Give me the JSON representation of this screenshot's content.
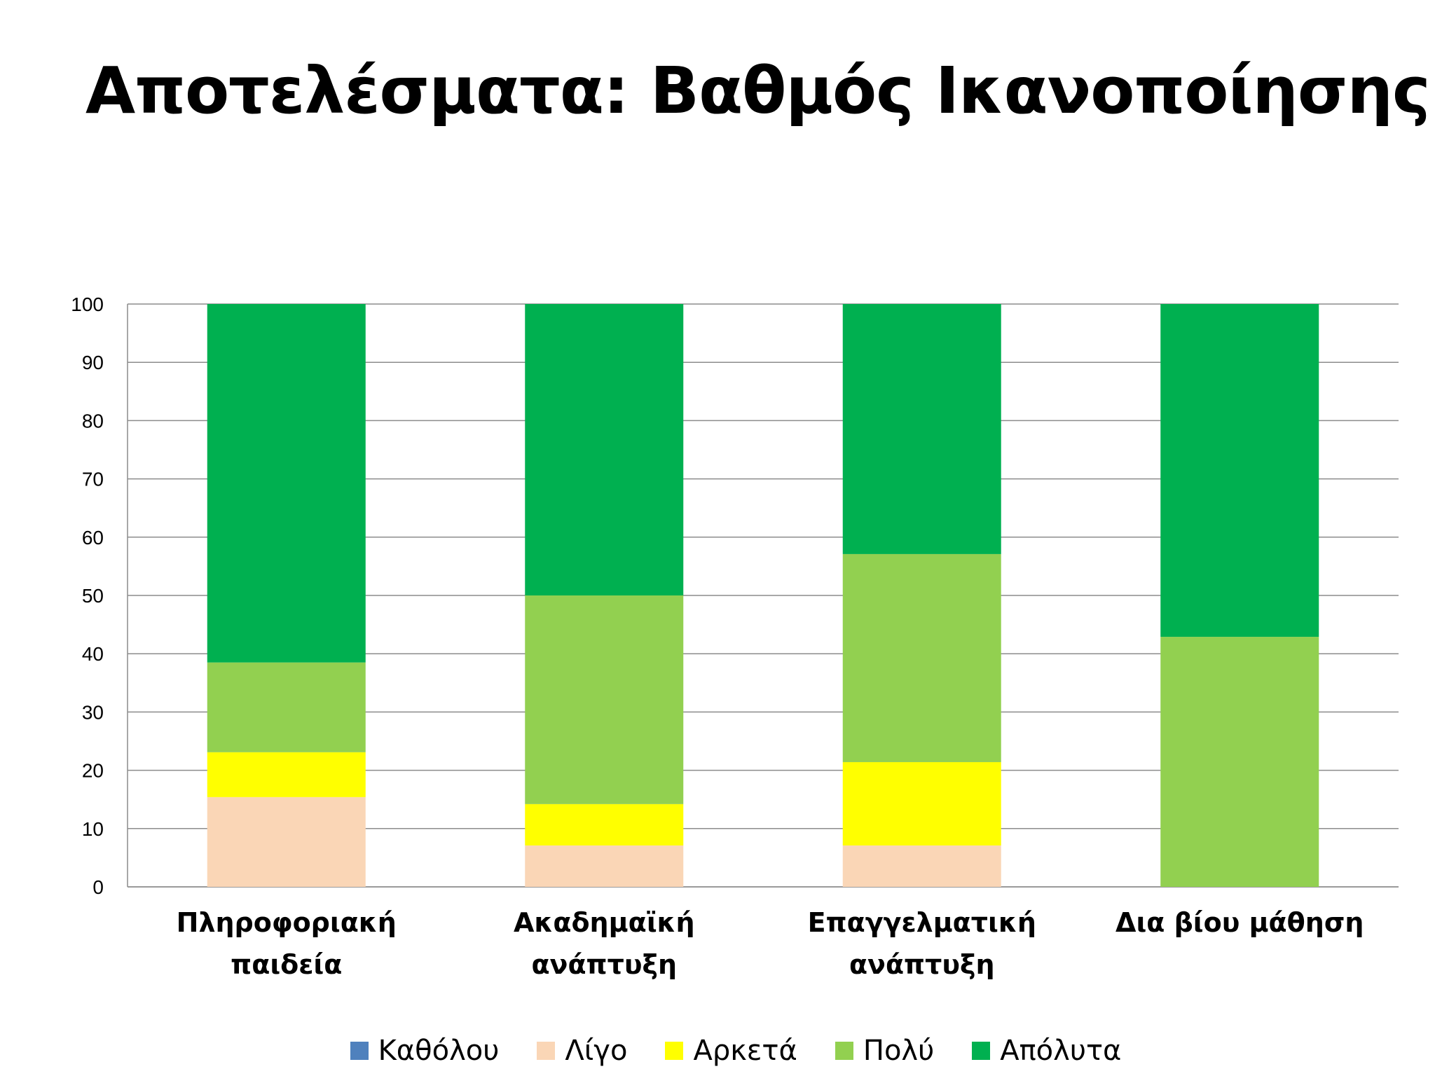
{
  "slide": {
    "title": "Αποτελέσματα: Βαθμός Ικανοποίησης"
  },
  "chart_data": {
    "type": "bar",
    "stacked": true,
    "title": "",
    "xlabel": "",
    "ylabel": "",
    "ylim": [
      0,
      100
    ],
    "yticks": [
      0,
      10,
      20,
      30,
      40,
      50,
      60,
      70,
      80,
      90,
      100
    ],
    "grid": true,
    "legend_position": "bottom",
    "categories": [
      [
        "Πληροφοριακή",
        "παιδεία"
      ],
      [
        "Ακαδημαϊκή",
        "ανάπτυξη"
      ],
      [
        "Επαγγελματική",
        "ανάπτυξη"
      ],
      [
        "Δια βίου μάθηση"
      ]
    ],
    "series": [
      {
        "name": "Καθόλου",
        "color": "#4f81bd",
        "values": [
          0,
          0,
          0,
          0
        ]
      },
      {
        "name": "Λίγο",
        "color": "#fad6b6",
        "values": [
          15.4,
          7.1,
          7.1,
          0
        ]
      },
      {
        "name": "Αρκετά",
        "color": "#ffff00",
        "values": [
          7.7,
          7.1,
          14.3,
          0
        ]
      },
      {
        "name": "Πολύ",
        "color": "#92d050",
        "values": [
          15.4,
          35.8,
          35.7,
          42.9
        ]
      },
      {
        "name": "Απόλυτα",
        "color": "#00b050",
        "values": [
          61.5,
          50.0,
          42.9,
          57.1
        ]
      }
    ]
  }
}
